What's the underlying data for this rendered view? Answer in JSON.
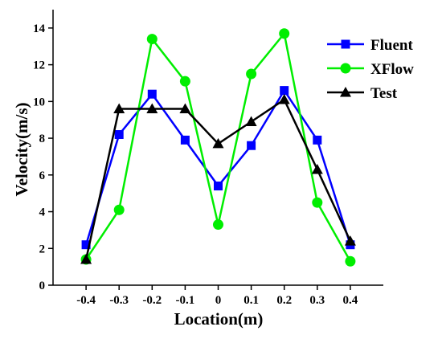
{
  "chart_data": {
    "type": "line",
    "xlabel": "Location(m)",
    "ylabel": "Velocity(m/s)",
    "xlim": [
      -0.5,
      0.5
    ],
    "ylim": [
      0,
      15
    ],
    "xticks": [
      "-0.4",
      "-0.3",
      "-0.2",
      "-0.1",
      "0",
      "0.1",
      "0.2",
      "0.3",
      "0.4"
    ],
    "yticks": [
      "0",
      "2",
      "4",
      "6",
      "8",
      "10",
      "12",
      "14"
    ],
    "x": [
      -0.4,
      -0.3,
      -0.2,
      -0.1,
      0,
      0.1,
      0.2,
      0.3,
      0.4
    ],
    "grid": false,
    "legend_position": "top-right",
    "series": [
      {
        "name": "Fluent",
        "color": "#0000ff",
        "marker": "square",
        "values": [
          2.2,
          8.2,
          10.4,
          7.9,
          5.4,
          7.6,
          10.6,
          7.9,
          2.2
        ]
      },
      {
        "name": "XFlow",
        "color": "#00ee00",
        "marker": "circle",
        "values": [
          1.4,
          4.1,
          13.4,
          11.1,
          3.3,
          11.5,
          13.7,
          4.5,
          1.3
        ]
      },
      {
        "name": "Test",
        "color": "#000000",
        "marker": "triangle",
        "values": [
          1.4,
          9.6,
          9.6,
          9.6,
          7.7,
          8.9,
          10.1,
          6.3,
          2.4
        ]
      }
    ]
  }
}
